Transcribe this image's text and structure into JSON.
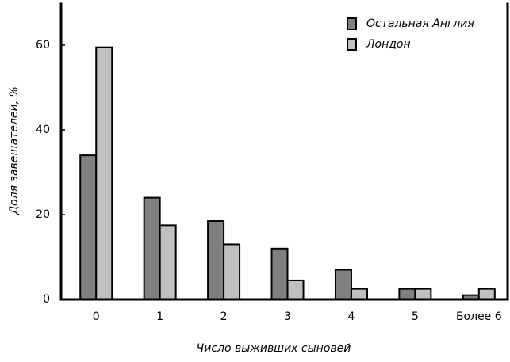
{
  "chart_data": {
    "type": "bar",
    "x_label": "Число выживших сыновей",
    "y_label": "Доля завещателей, %",
    "categories": [
      "0",
      "1",
      "2",
      "3",
      "4",
      "5",
      "Более  6"
    ],
    "series": [
      {
        "name": "Остальная Англия",
        "color": "#808080",
        "values": [
          34,
          24,
          18.5,
          12,
          7,
          2.5,
          1
        ]
      },
      {
        "name": "Лондон",
        "color": "#c0c0c0",
        "values": [
          59.5,
          17.5,
          13,
          4.5,
          2.5,
          2.5,
          2.5
        ]
      }
    ],
    "ylim": [
      0,
      70
    ],
    "yticks": [
      0,
      20,
      40,
      60
    ],
    "legend": "top-right"
  }
}
